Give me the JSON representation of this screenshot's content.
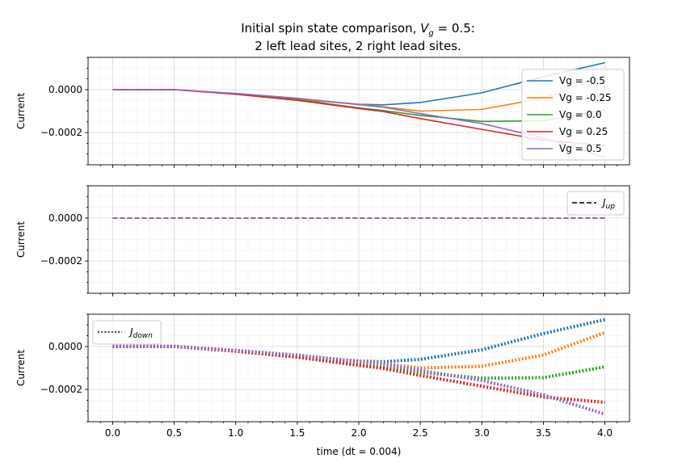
{
  "chart_data": [
    {
      "type": "line",
      "panel": "top",
      "line_style": "solid",
      "title": "Initial spin state comparison, $V_g = 0.5$:\n2 left lead sites, 2 right lead sites.",
      "title_lines": [
        "Initial spin state comparison, ",
        "V",
        "g",
        " = 0.5:",
        "2 left lead sites, 2 right lead sites."
      ],
      "ylabel": "Current",
      "xlabel": "",
      "xlim": [
        -0.2,
        4.2
      ],
      "ylim": [
        -0.00035,
        0.00015
      ],
      "x_ticks": [
        0.0,
        0.5,
        1.0,
        1.5,
        2.0,
        2.5,
        3.0,
        3.5,
        4.0
      ],
      "y_ticks": [
        0.0,
        -0.0002
      ],
      "y_tick_labels": [
        "0.0000",
        "−0.0002"
      ],
      "grid": true,
      "legend_position": "upper right",
      "series": [
        {
          "name": "Vg = -0.5",
          "color": "#1f77b4",
          "x": [
            0,
            0.5,
            1.0,
            1.5,
            2.0,
            2.2,
            2.5,
            3.0,
            3.5,
            4.0
          ],
          "y": [
            0,
            0,
            -2e-05,
            -4.5e-05,
            -6.8e-05,
            -7.1e-05,
            -6e-05,
            -1.5e-05,
            6e-05,
            0.000125
          ]
        },
        {
          "name": "Vg = -0.25",
          "color": "#ff7f0e",
          "x": [
            0,
            0.5,
            1.0,
            1.5,
            2.0,
            2.2,
            2.5,
            3.0,
            3.5,
            4.0
          ],
          "y": [
            0,
            0,
            -2e-05,
            -4.5e-05,
            -6.8e-05,
            -8e-05,
            -0.0001,
            -9.2e-05,
            -4e-05,
            6.5e-05
          ]
        },
        {
          "name": "Vg = 0.0",
          "color": "#2ca02c",
          "x": [
            0,
            0.5,
            1.0,
            1.5,
            2.0,
            2.2,
            2.5,
            3.0,
            3.5,
            4.0
          ],
          "y": [
            0,
            0,
            -2e-05,
            -4.7e-05,
            -8.5e-05,
            -9.8e-05,
            -0.00012,
            -0.000148,
            -0.000145,
            -9.5e-05
          ]
        },
        {
          "name": "Vg = 0.25",
          "color": "#d62728",
          "x": [
            0,
            0.5,
            1.0,
            1.5,
            2.0,
            2.2,
            2.5,
            3.0,
            3.5,
            4.0
          ],
          "y": [
            0,
            0,
            -2.2e-05,
            -5e-05,
            -8.8e-05,
            -0.000102,
            -0.000135,
            -0.000185,
            -0.000235,
            -0.00026
          ]
        },
        {
          "name": "Vg = 0.5",
          "color": "#9467bd",
          "x": [
            0,
            0.5,
            1.0,
            1.5,
            2.0,
            2.2,
            2.5,
            3.0,
            3.5,
            4.0
          ],
          "y": [
            0,
            0,
            -1.8e-05,
            -4e-05,
            -7e-05,
            -8.2e-05,
            -0.000112,
            -0.000158,
            -0.000225,
            -0.000315
          ]
        }
      ]
    },
    {
      "type": "line",
      "panel": "middle",
      "line_style": "dashed",
      "ylabel": "Current",
      "xlabel": "",
      "xlim": [
        -0.2,
        4.2
      ],
      "ylim": [
        -0.00035,
        0.00015
      ],
      "x_ticks": [
        0.0,
        0.5,
        1.0,
        1.5,
        2.0,
        2.5,
        3.0,
        3.5,
        4.0
      ],
      "y_ticks": [
        0.0,
        -0.0002
      ],
      "y_tick_labels": [
        "0.0000",
        "−0.0002"
      ],
      "grid": true,
      "legend_position": "upper right",
      "legend_label": "J_up",
      "legend_label_parts": [
        "J",
        "up"
      ],
      "series": [
        {
          "color": "#1f77b4",
          "x": [
            0,
            4.0
          ],
          "y": [
            0,
            0
          ]
        },
        {
          "color": "#ff7f0e",
          "x": [
            0,
            4.0
          ],
          "y": [
            0,
            0
          ]
        },
        {
          "color": "#2ca02c",
          "x": [
            0,
            4.0
          ],
          "y": [
            0,
            0
          ]
        },
        {
          "color": "#d62728",
          "x": [
            0,
            4.0
          ],
          "y": [
            0,
            0
          ]
        },
        {
          "color": "#9467bd",
          "x": [
            0,
            4.0
          ],
          "y": [
            0,
            0
          ]
        }
      ]
    },
    {
      "type": "line",
      "panel": "bottom",
      "line_style": "dotted",
      "ylabel": "Current",
      "xlabel": "time (dt = 0.004)",
      "xlim": [
        -0.2,
        4.2
      ],
      "ylim": [
        -0.00035,
        0.00015
      ],
      "x_ticks": [
        0.0,
        0.5,
        1.0,
        1.5,
        2.0,
        2.5,
        3.0,
        3.5,
        4.0
      ],
      "x_tick_labels": [
        "0.0",
        "0.5",
        "1.0",
        "1.5",
        "2.0",
        "2.5",
        "3.0",
        "3.5",
        "4.0"
      ],
      "y_ticks": [
        0.0,
        -0.0002
      ],
      "y_tick_labels": [
        "0.0000",
        "−0.0002"
      ],
      "grid": true,
      "legend_position": "upper left",
      "legend_label": "J_down",
      "legend_label_parts": [
        "J",
        "down"
      ],
      "series": [
        {
          "color": "#1f77b4",
          "x": [
            0,
            0.5,
            1.0,
            1.5,
            2.0,
            2.2,
            2.5,
            3.0,
            3.5,
            4.0
          ],
          "y": [
            0,
            0,
            -2e-05,
            -4.5e-05,
            -6.8e-05,
            -7.1e-05,
            -6e-05,
            -1.5e-05,
            6e-05,
            0.000125
          ]
        },
        {
          "color": "#ff7f0e",
          "x": [
            0,
            0.5,
            1.0,
            1.5,
            2.0,
            2.2,
            2.5,
            3.0,
            3.5,
            4.0
          ],
          "y": [
            0,
            0,
            -2e-05,
            -4.5e-05,
            -6.8e-05,
            -8e-05,
            -0.0001,
            -9.2e-05,
            -4e-05,
            6.5e-05
          ]
        },
        {
          "color": "#2ca02c",
          "x": [
            0,
            0.5,
            1.0,
            1.5,
            2.0,
            2.2,
            2.5,
            3.0,
            3.5,
            4.0
          ],
          "y": [
            0,
            0,
            -2e-05,
            -4.7e-05,
            -8.5e-05,
            -9.8e-05,
            -0.00012,
            -0.000148,
            -0.000145,
            -9.5e-05
          ]
        },
        {
          "color": "#d62728",
          "x": [
            0,
            0.5,
            1.0,
            1.5,
            2.0,
            2.2,
            2.5,
            3.0,
            3.5,
            4.0
          ],
          "y": [
            0,
            0,
            -2.2e-05,
            -5e-05,
            -8.8e-05,
            -0.000102,
            -0.000135,
            -0.000185,
            -0.000235,
            -0.00026
          ]
        },
        {
          "color": "#9467bd",
          "x": [
            0,
            0.5,
            1.0,
            1.5,
            2.0,
            2.2,
            2.5,
            3.0,
            3.5,
            4.0
          ],
          "y": [
            0,
            0,
            -1.8e-05,
            -4e-05,
            -7e-05,
            -8.2e-05,
            -0.000112,
            -0.000158,
            -0.000225,
            -0.000315
          ]
        }
      ]
    }
  ]
}
